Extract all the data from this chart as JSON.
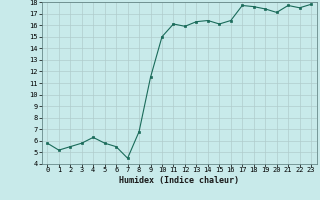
{
  "x": [
    0,
    1,
    2,
    3,
    4,
    5,
    6,
    7,
    8,
    9,
    10,
    11,
    12,
    13,
    14,
    15,
    16,
    17,
    18,
    19,
    20,
    21,
    22,
    23
  ],
  "y": [
    5.8,
    5.2,
    5.5,
    5.8,
    6.3,
    5.8,
    5.5,
    4.5,
    6.8,
    11.5,
    15.0,
    16.1,
    15.9,
    16.3,
    16.4,
    16.1,
    16.4,
    17.7,
    17.6,
    17.4,
    17.1,
    17.7,
    17.5,
    17.8
  ],
  "xlabel": "Humidex (Indice chaleur)",
  "ylim": [
    4,
    18
  ],
  "xlim_min": -0.5,
  "xlim_max": 23.5,
  "yticks": [
    4,
    5,
    6,
    7,
    8,
    9,
    10,
    11,
    12,
    13,
    14,
    15,
    16,
    17,
    18
  ],
  "xticks": [
    0,
    1,
    2,
    3,
    4,
    5,
    6,
    7,
    8,
    9,
    10,
    11,
    12,
    13,
    14,
    15,
    16,
    17,
    18,
    19,
    20,
    21,
    22,
    23
  ],
  "line_color": "#1a6b5a",
  "marker_color": "#1a6b5a",
  "bg_color": "#c8eaea",
  "grid_color": "#b0cccc",
  "xlabel_fontsize": 6.0,
  "tick_fontsize": 5.0
}
